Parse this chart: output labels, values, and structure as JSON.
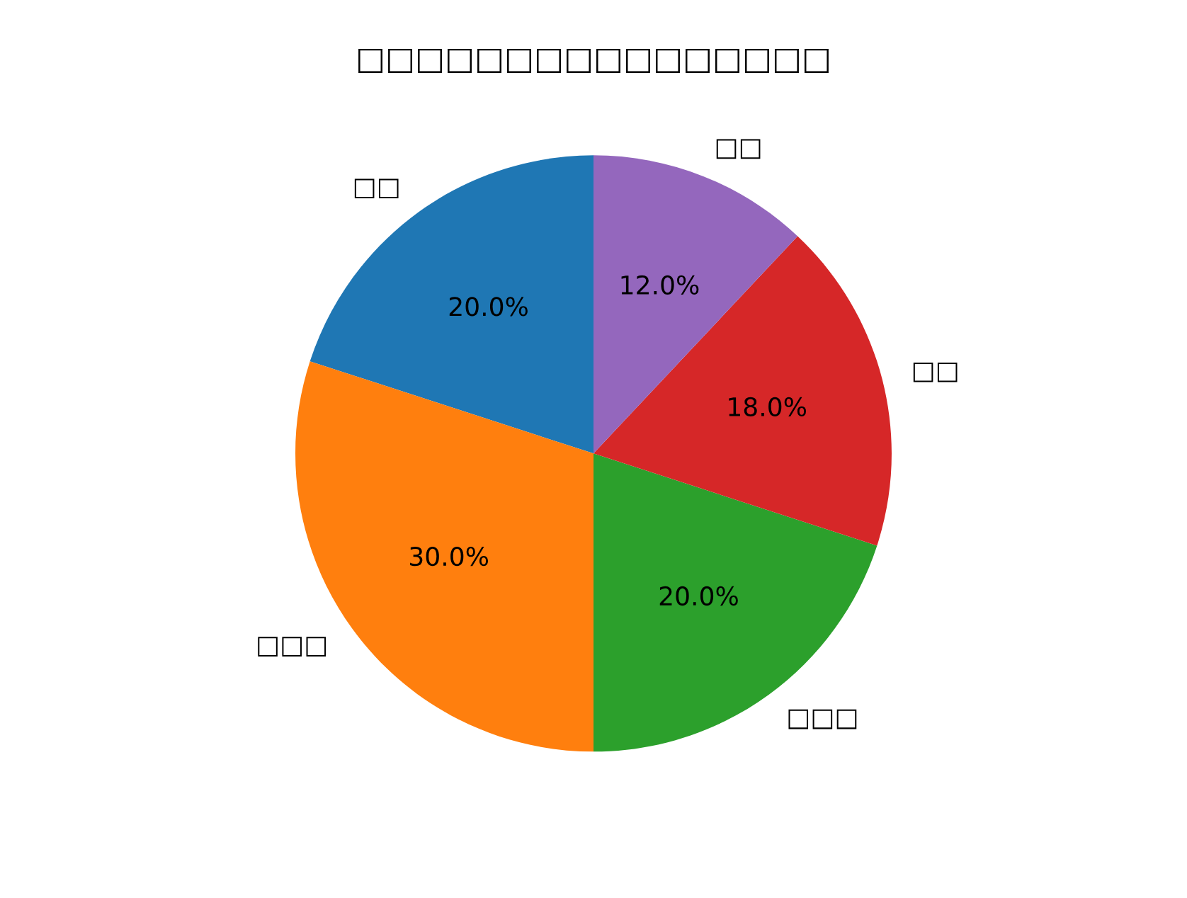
{
  "chart_data": {
    "type": "pie",
    "title": "□□□□□□□□□□□□□□□□",
    "categories": [
      "□□",
      "□□□",
      "□□□",
      "□□",
      "□□"
    ],
    "values": [
      20,
      30,
      20,
      18,
      12
    ],
    "value_labels": [
      "20.0%",
      "30.0%",
      "20.0%",
      "18.0%",
      "12.0%"
    ],
    "colors": [
      "#1f77b4",
      "#ff7f0e",
      "#2ca02c",
      "#d62728",
      "#9467bd"
    ],
    "legend": false
  }
}
